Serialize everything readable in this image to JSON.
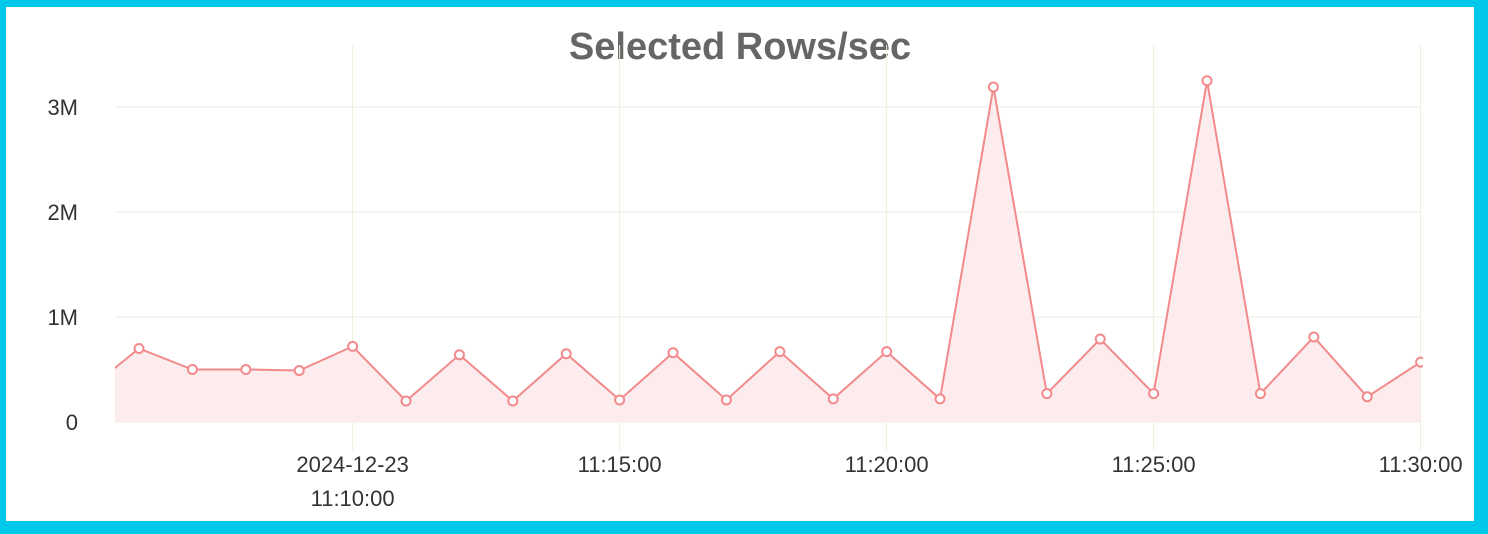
{
  "chart_data": {
    "type": "area",
    "title": "Selected Rows/sec",
    "xlabel": "",
    "ylabel": "",
    "date": "2024-12-23",
    "x": [
      "11:05:00",
      "11:06:00",
      "11:07:00",
      "11:08:00",
      "11:09:00",
      "11:10:00",
      "11:11:00",
      "11:12:00",
      "11:13:00",
      "11:14:00",
      "11:15:00",
      "11:16:00",
      "11:17:00",
      "11:18:00",
      "11:19:00",
      "11:20:00",
      "11:21:00",
      "11:22:00",
      "11:23:00",
      "11:24:00",
      "11:25:00",
      "11:26:00",
      "11:27:00",
      "11:28:00",
      "11:29:00",
      "11:30:00"
    ],
    "series": [
      {
        "values": [
          290000,
          700000,
          500000,
          500000,
          490000,
          720000,
          200000,
          640000,
          200000,
          650000,
          210000,
          660000,
          210000,
          670000,
          220000,
          670000,
          220000,
          3190000,
          270000,
          790000,
          270000,
          3250000,
          270000,
          810000,
          240000,
          570000
        ]
      }
    ],
    "xlim": [
      "11:05:33",
      "11:30:00"
    ],
    "ylim": [
      0,
      3300000
    ],
    "x_ticks": [
      {
        "time": "11:10:00",
        "lines": [
          "2024-12-23",
          "11:10:00"
        ]
      },
      {
        "time": "11:15:00",
        "lines": [
          "11:15:00"
        ]
      },
      {
        "time": "11:20:00",
        "lines": [
          "11:20:00"
        ]
      },
      {
        "time": "11:25:00",
        "lines": [
          "11:25:00"
        ]
      },
      {
        "time": "11:30:00",
        "lines": [
          "11:30:00"
        ]
      }
    ],
    "y_ticks": [
      {
        "value": 0,
        "label": "0"
      },
      {
        "value": 1000000,
        "label": "1M"
      },
      {
        "value": 2000000,
        "label": "2M"
      },
      {
        "value": 3000000,
        "label": "3M"
      }
    ],
    "grid": true,
    "legend": "none",
    "colors": {
      "line": "#f28a8c",
      "fill": "#fdeced",
      "grid": "#eeeedd",
      "border": "#00c8e8"
    }
  }
}
